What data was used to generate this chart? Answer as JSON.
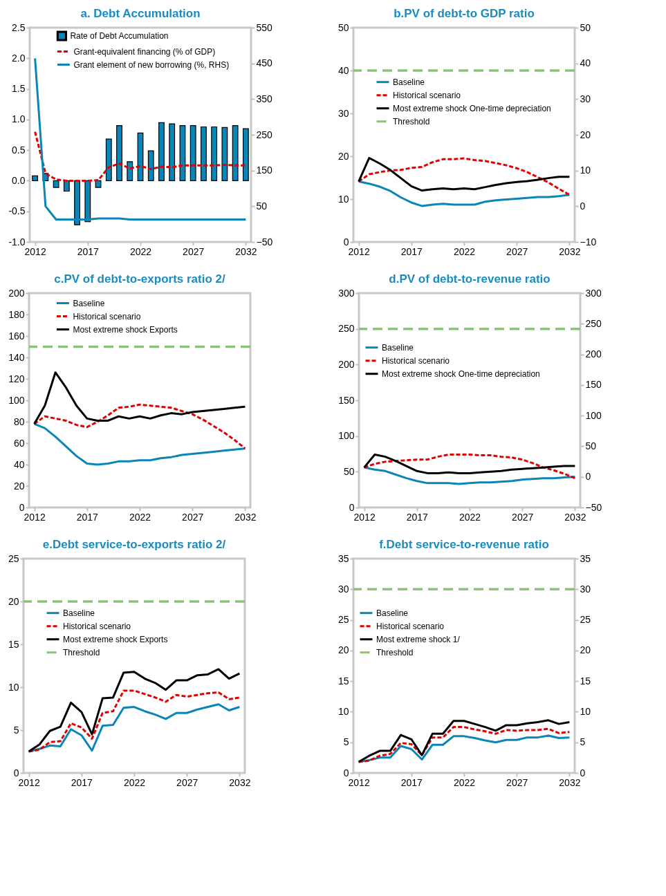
{
  "chart_data": [
    {
      "type": "bar",
      "title": "a. Debt Accumulation",
      "x": [
        2012,
        2013,
        2014,
        2015,
        2016,
        2017,
        2018,
        2019,
        2020,
        2021,
        2022,
        2023,
        2024,
        2025,
        2026,
        2027,
        2028,
        2029,
        2030,
        2031,
        2032
      ],
      "xlim": [
        2011.5,
        2032.5
      ],
      "xticks": [
        2012,
        2017,
        2022,
        2027,
        2032
      ],
      "ylim": [
        -1,
        2.5
      ],
      "yticks": [
        {
          "value": -1,
          "label": "-1.0"
        },
        {
          "value": -0.5,
          "label": "-0.5"
        },
        {
          "value": 0,
          "label": "0.0"
        },
        {
          "value": 0.5,
          "label": "0.5"
        },
        {
          "value": 1,
          "label": "1.0"
        },
        {
          "value": 1.5,
          "label": "1.5"
        },
        {
          "value": 2,
          "label": "2.0"
        },
        {
          "value": 2.5,
          "label": "2.5"
        }
      ],
      "y2lim": [
        -50,
        550
      ],
      "y2ticks": [
        -50,
        50,
        150,
        250,
        350,
        450,
        550
      ],
      "legend": "top",
      "series": [
        {
          "name": "Rate of Debt Accumulation",
          "color": "#0a85b8",
          "values": [
            0.08,
            0.12,
            -0.11,
            -0.17,
            -0.72,
            -0.67,
            -0.11,
            0.68,
            0.9,
            0.31,
            0.78,
            0.49,
            0.95,
            0.93,
            0.9,
            0.9,
            0.88,
            0.88,
            0.87,
            0.9,
            0.85
          ]
        },
        {
          "name": "Grant-equivalent financing (% of GDP)",
          "type": "line",
          "color": "#e00000",
          "line_style": "dashed",
          "values": [
            0.8,
            0.12,
            0.02,
            0,
            0,
            0,
            0.01,
            0.22,
            0.28,
            0.2,
            0.24,
            0.19,
            0.23,
            0.22,
            0.25,
            0.25,
            0.25,
            0.25,
            0.26,
            0.25,
            0.25
          ]
        },
        {
          "name": "Grant element of new borrowing (%, RHS)",
          "type": "line",
          "axis": "y2",
          "color": "#0a85b8",
          "line_style": "solid",
          "values": [
            464,
            50,
            13,
            13,
            13,
            13,
            16,
            16,
            16,
            13,
            13,
            13,
            13,
            13,
            13,
            13,
            13,
            13,
            13,
            13,
            13
          ]
        }
      ]
    },
    {
      "type": "line",
      "title": "b.PV of debt-to GDP ratio",
      "x": [
        2012,
        2013,
        2014,
        2015,
        2016,
        2017,
        2018,
        2019,
        2020,
        2021,
        2022,
        2023,
        2024,
        2025,
        2026,
        2027,
        2028,
        2029,
        2030,
        2031,
        2032
      ],
      "xlim": [
        2011.5,
        2032.5
      ],
      "xticks": [
        2012,
        2017,
        2022,
        2027,
        2032
      ],
      "ylim": [
        0,
        50
      ],
      "yticks": [
        0,
        10,
        20,
        30,
        40,
        50
      ],
      "y2lim": [
        -10,
        50
      ],
      "y2ticks": [
        -10,
        0,
        10,
        20,
        30,
        40,
        50
      ],
      "legend": "center",
      "ref_lines": [
        {
          "axis": "y",
          "value": 40,
          "label": "Threshold",
          "color": "#8cc17a",
          "line_style": "dashed"
        }
      ],
      "series": [
        {
          "name": "Baseline",
          "color": "#0a85b8",
          "line_style": "solid",
          "values": [
            14.1,
            13.6,
            12.9,
            11.9,
            10.4,
            9.2,
            8.4,
            8.7,
            8.9,
            8.7,
            8.7,
            8.7,
            9.4,
            9.7,
            9.9,
            10.1,
            10.3,
            10.5,
            10.5,
            10.7,
            11.0
          ]
        },
        {
          "name": "Historical scenario",
          "color": "#e00000",
          "line_style": "dashed",
          "values": [
            14.1,
            15.8,
            16.3,
            16.7,
            16.8,
            17.3,
            17.5,
            18.6,
            19.3,
            19.3,
            19.5,
            19.1,
            18.9,
            18.4,
            17.9,
            17.2,
            16.3,
            15.1,
            13.9,
            12.4,
            11.0
          ]
        },
        {
          "name": "Most extreme shock One-time depreciation",
          "color": "#000000",
          "line_style": "solid",
          "values": [
            14.1,
            19.6,
            18.3,
            16.8,
            14.9,
            13.0,
            12.0,
            12.3,
            12.5,
            12.3,
            12.5,
            12.3,
            12.8,
            13.3,
            13.7,
            14.0,
            14.2,
            14.5,
            14.9,
            15.2,
            15.2
          ]
        }
      ]
    },
    {
      "type": "line",
      "title": "c.PV of debt-to-exports ratio 2/",
      "x": [
        2012,
        2013,
        2014,
        2015,
        2016,
        2017,
        2018,
        2019,
        2020,
        2021,
        2022,
        2023,
        2024,
        2025,
        2026,
        2027,
        2028,
        2029,
        2030,
        2031,
        2032
      ],
      "xlim": [
        2011.5,
        2032.5
      ],
      "xticks": [
        2012,
        2017,
        2022,
        2027,
        2032
      ],
      "ylim": [
        0,
        200
      ],
      "yticks": [
        0,
        20,
        40,
        60,
        80,
        100,
        120,
        140,
        160,
        180,
        200
      ],
      "legend": "top",
      "ref_lines": [
        {
          "axis": "y",
          "value": 150,
          "color": "#8cc17a",
          "line_style": "dashed"
        }
      ],
      "series": [
        {
          "name": "Baseline",
          "color": "#0a85b8",
          "line_style": "solid",
          "values": [
            78,
            74,
            66,
            57,
            48,
            41,
            40,
            41,
            43,
            43,
            44,
            44,
            46,
            47,
            49,
            50,
            51,
            52,
            53,
            54,
            55
          ]
        },
        {
          "name": "Historical scenario",
          "color": "#e00000",
          "line_style": "dashed",
          "values": [
            78,
            85,
            83,
            81,
            77,
            75,
            80,
            86,
            93,
            94,
            96,
            95,
            94,
            93,
            90,
            87,
            82,
            76,
            70,
            63,
            55
          ]
        },
        {
          "name": "Most extreme shock Exports",
          "color": "#000000",
          "line_style": "solid",
          "values": [
            78,
            95,
            126,
            112,
            95,
            83,
            81,
            81,
            85,
            83,
            85,
            83,
            86,
            88,
            87,
            89,
            90,
            91,
            92,
            93,
            94
          ]
        }
      ]
    },
    {
      "type": "line",
      "title": "d.PV of debt-to-revenue ratio",
      "x": [
        2012,
        2013,
        2014,
        2015,
        2016,
        2017,
        2018,
        2019,
        2020,
        2021,
        2022,
        2023,
        2024,
        2025,
        2026,
        2027,
        2028,
        2029,
        2030,
        2031,
        2032
      ],
      "xlim": [
        2011.5,
        2032.5
      ],
      "xticks": [
        2012,
        2017,
        2022,
        2027,
        2032
      ],
      "ylim": [
        0,
        300
      ],
      "yticks": [
        0,
        50,
        100,
        150,
        200,
        250,
        300
      ],
      "y2lim": [
        -50,
        300
      ],
      "y2ticks": [
        -50,
        0,
        50,
        100,
        150,
        200,
        250,
        300
      ],
      "legend": "left",
      "ref_lines": [
        {
          "axis": "y",
          "value": 250,
          "color": "#8cc17a",
          "line_style": "dashed"
        }
      ],
      "series": [
        {
          "name": "Baseline",
          "color": "#0a85b8",
          "line_style": "solid",
          "values": [
            56,
            53,
            51,
            46,
            41,
            37,
            34,
            34,
            34,
            33,
            34,
            35,
            35,
            36,
            37,
            39,
            40,
            41,
            41,
            42,
            43
          ]
        },
        {
          "name": "Historical scenario",
          "color": "#e00000",
          "line_style": "dashed",
          "values": [
            56,
            61,
            64,
            65,
            66,
            67,
            67,
            71,
            74,
            74,
            74,
            73,
            73,
            71,
            70,
            67,
            62,
            56,
            52,
            47,
            41
          ]
        },
        {
          "name": "Most extreme shock One-time depreciation",
          "color": "#000000",
          "line_style": "solid",
          "values": [
            56,
            74,
            71,
            65,
            58,
            51,
            48,
            48,
            49,
            48,
            48,
            49,
            50,
            51,
            53,
            54,
            55,
            56,
            57,
            58,
            58
          ]
        }
      ]
    },
    {
      "type": "line",
      "title": "e.Debt service-to-exports ratio 2/",
      "x": [
        2012,
        2013,
        2014,
        2015,
        2016,
        2017,
        2018,
        2019,
        2020,
        2021,
        2022,
        2023,
        2024,
        2025,
        2026,
        2027,
        2028,
        2029,
        2030,
        2031,
        2032
      ],
      "xlim": [
        2011.5,
        2032.5
      ],
      "xticks": [
        2012,
        2017,
        2022,
        2027,
        2032
      ],
      "ylim": [
        0,
        25
      ],
      "yticks": [
        0,
        5,
        10,
        15,
        20,
        25
      ],
      "legend": "center",
      "ref_lines": [
        {
          "axis": "y",
          "value": 20,
          "label": "Threshold",
          "color": "#8cc17a",
          "line_style": "dashed"
        }
      ],
      "series": [
        {
          "name": "Baseline",
          "color": "#0a85b8",
          "line_style": "solid",
          "values": [
            2.5,
            2.8,
            3.2,
            3.1,
            5.1,
            4.4,
            2.6,
            5.5,
            5.6,
            7.6,
            7.7,
            7.2,
            6.8,
            6.3,
            7.0,
            7.0,
            7.4,
            7.7,
            8.0,
            7.3,
            7.7
          ]
        },
        {
          "name": "Historical scenario",
          "color": "#e00000",
          "line_style": "dashed",
          "values": [
            2.5,
            2.7,
            3.6,
            3.7,
            5.8,
            5.3,
            4.0,
            7.0,
            7.2,
            9.6,
            9.6,
            9.2,
            8.8,
            8.3,
            9.1,
            8.9,
            9.1,
            9.3,
            9.4,
            8.6,
            8.8
          ]
        },
        {
          "name": "Most extreme shock Exports",
          "color": "#000000",
          "line_style": "solid",
          "values": [
            2.5,
            3.3,
            4.9,
            5.4,
            8.2,
            7.1,
            4.5,
            8.7,
            8.8,
            11.7,
            11.8,
            11.0,
            10.5,
            9.7,
            10.8,
            10.8,
            11.4,
            11.5,
            12.1,
            11.0,
            11.6
          ]
        }
      ]
    },
    {
      "type": "line",
      "title": "f.Debt service-to-revenue ratio",
      "x": [
        2012,
        2013,
        2014,
        2015,
        2016,
        2017,
        2018,
        2019,
        2020,
        2021,
        2022,
        2023,
        2024,
        2025,
        2026,
        2027,
        2028,
        2029,
        2030,
        2031,
        2032
      ],
      "xlim": [
        2011.5,
        2032.5
      ],
      "xticks": [
        2012,
        2017,
        2022,
        2027,
        2032
      ],
      "ylim": [
        0,
        35
      ],
      "yticks": [
        0,
        5,
        10,
        15,
        20,
        25,
        30,
        35
      ],
      "y2lim": [
        0,
        35
      ],
      "y2ticks": [
        0,
        5,
        10,
        15,
        20,
        25,
        30,
        35
      ],
      "legend": "left",
      "ref_lines": [
        {
          "axis": "y",
          "value": 30,
          "label": "Threshold",
          "color": "#8cc17a",
          "line_style": "dashed"
        }
      ],
      "series": [
        {
          "name": "Baseline",
          "color": "#0a85b8",
          "line_style": "solid",
          "values": [
            1.8,
            2.1,
            2.5,
            2.5,
            4.4,
            3.9,
            2.2,
            4.6,
            4.6,
            6.0,
            6.0,
            5.7,
            5.3,
            5.0,
            5.4,
            5.4,
            5.8,
            5.8,
            6.1,
            5.7,
            5.8
          ]
        },
        {
          "name": "Historical scenario",
          "color": "#e00000",
          "line_style": "dashed",
          "values": [
            1.8,
            2.0,
            2.8,
            3.1,
            4.9,
            4.7,
            2.9,
            5.8,
            5.8,
            7.5,
            7.5,
            7.1,
            6.8,
            6.4,
            7.0,
            6.9,
            7.0,
            7.0,
            7.2,
            6.5,
            6.7
          ]
        },
        {
          "name": "Most extreme shock 1/",
          "color": "#000000",
          "line_style": "solid",
          "values": [
            1.8,
            2.8,
            3.6,
            3.6,
            6.2,
            5.5,
            2.9,
            6.4,
            6.4,
            8.5,
            8.5,
            8.0,
            7.5,
            6.9,
            7.8,
            7.8,
            8.1,
            8.3,
            8.6,
            8.0,
            8.3
          ]
        }
      ]
    }
  ]
}
